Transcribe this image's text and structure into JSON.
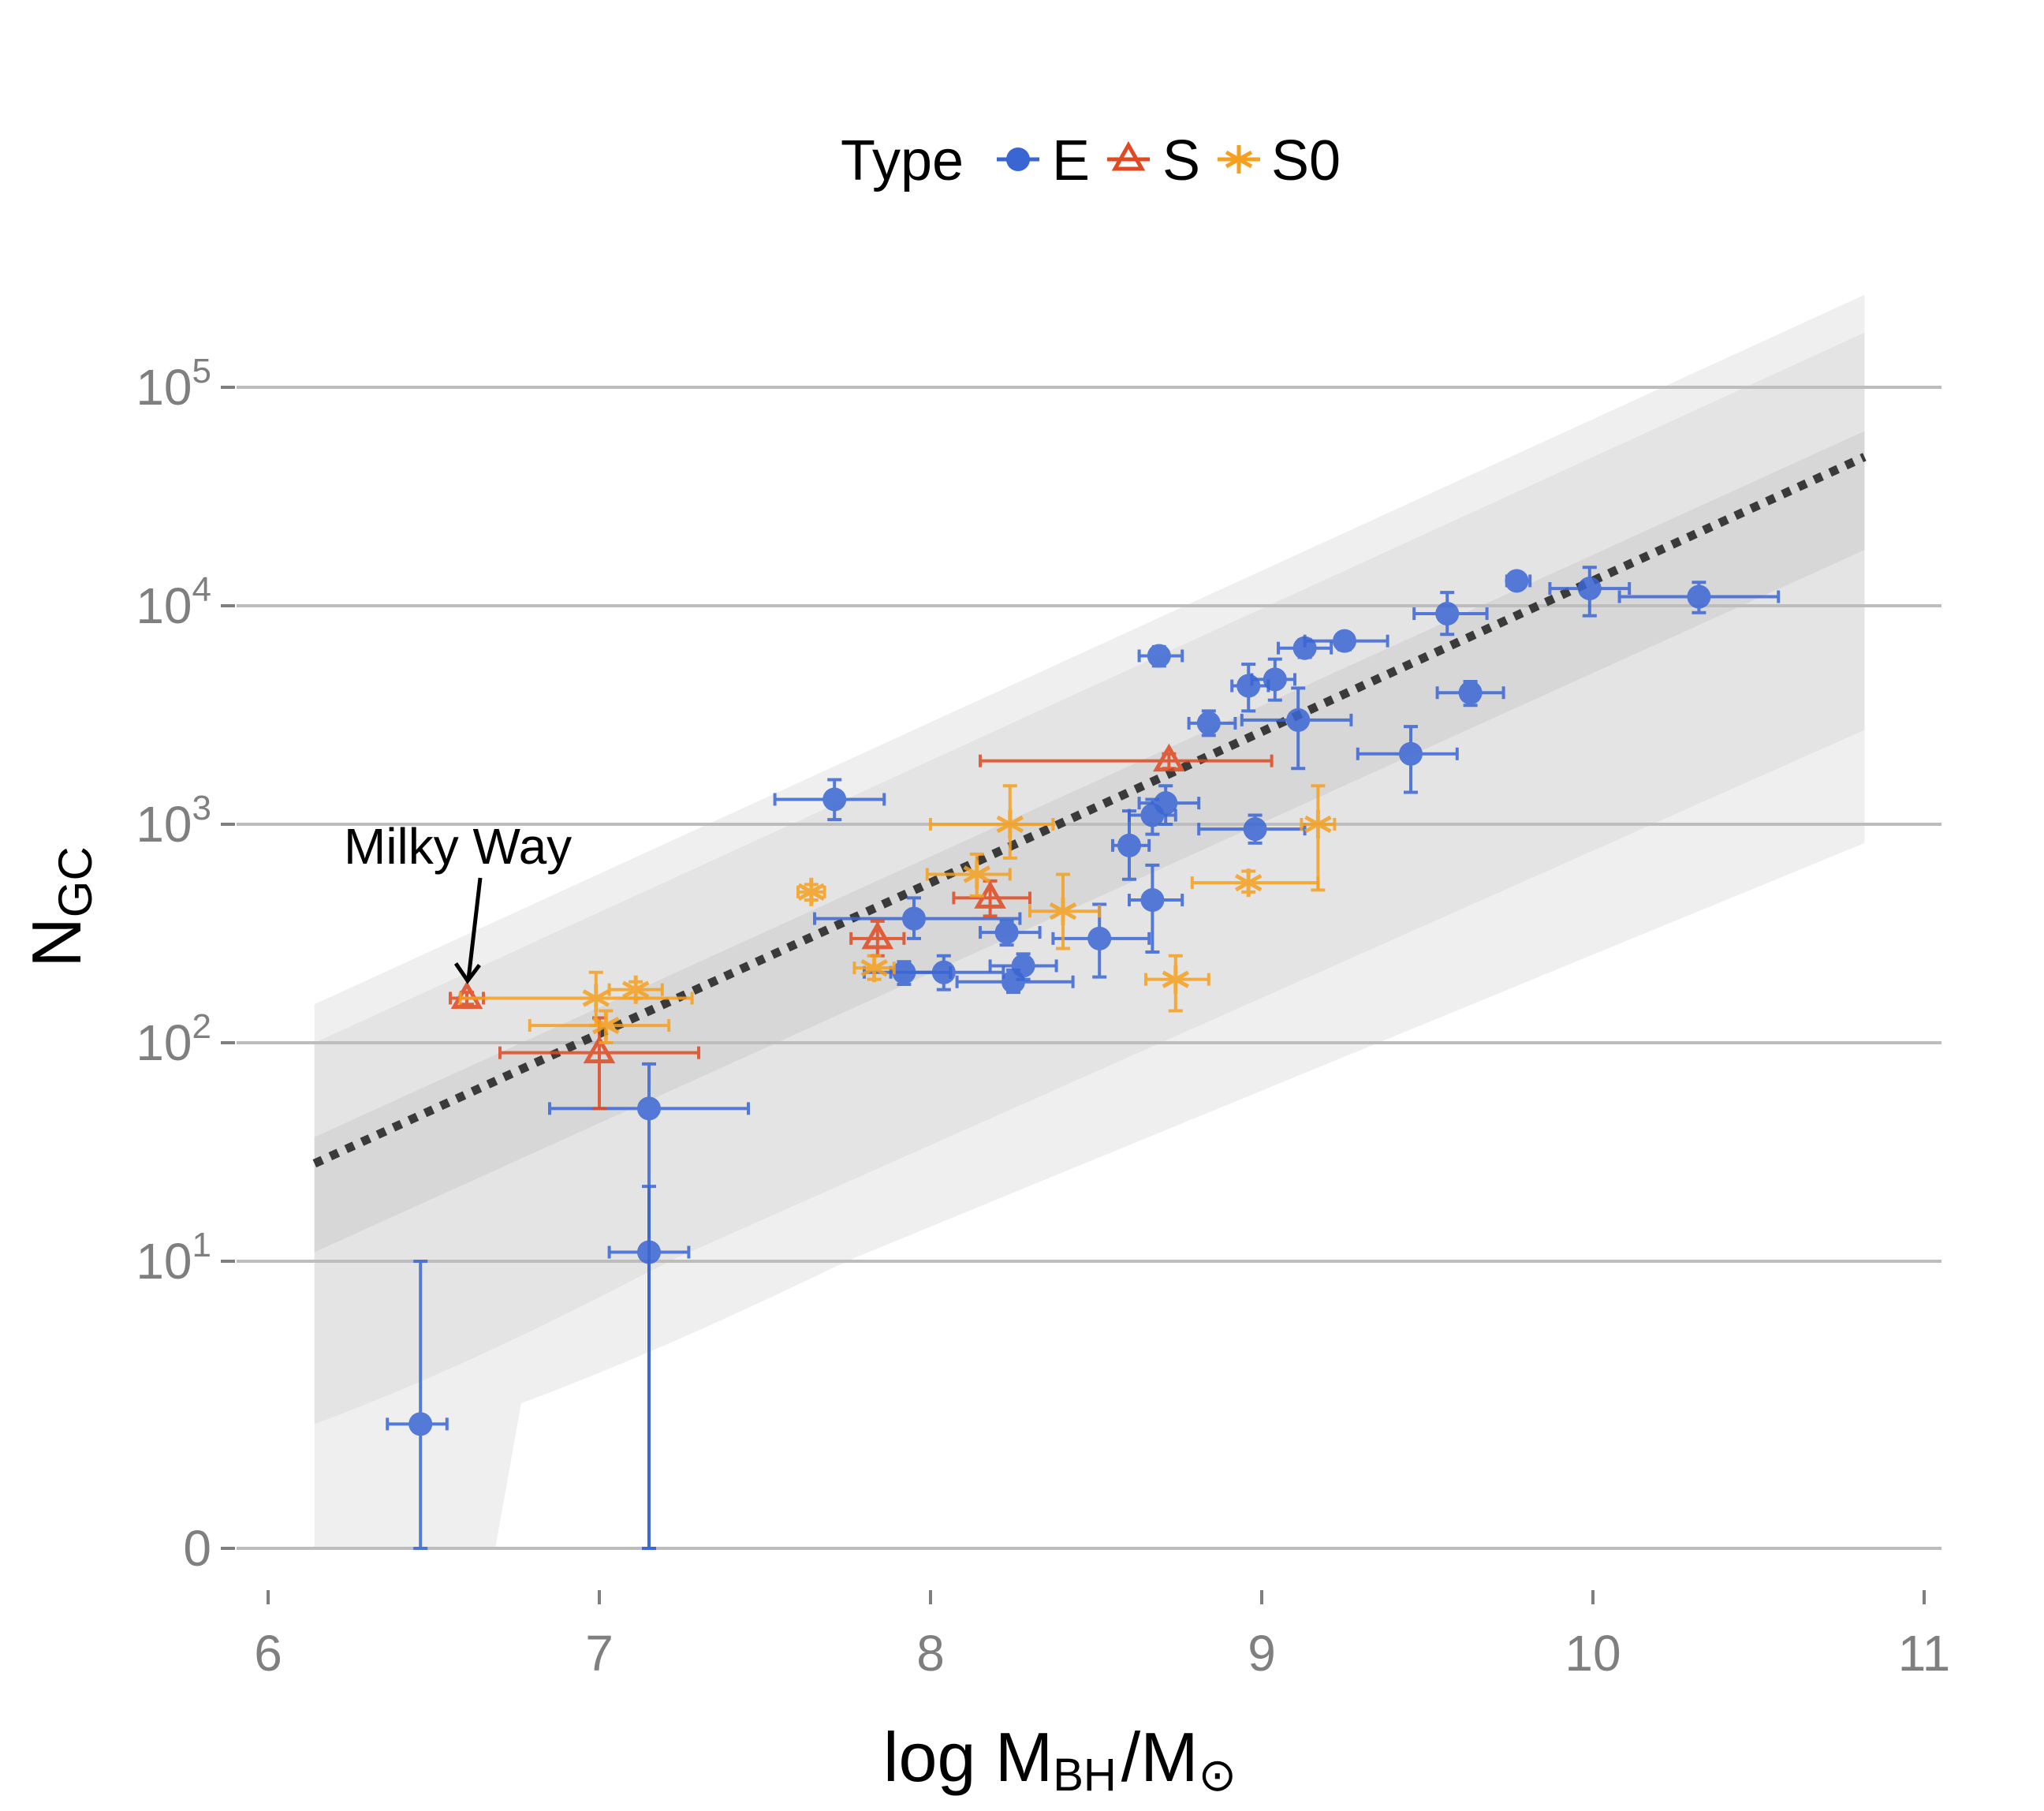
{
  "chart_data": {
    "type": "scatter",
    "title": "",
    "xlabel": {
      "prefix": "log M",
      "sub1": "BH",
      "slash": "/",
      "mid": "M",
      "sub2": "⊙"
    },
    "ylabel": {
      "main": "N",
      "sub": "GC"
    },
    "xlim": [
      6,
      11
    ],
    "x_ticks": [
      "6",
      "7",
      "8",
      "9",
      "10",
      "11"
    ],
    "y_ticks": [
      {
        "value": 0,
        "label": "0",
        "exp": ""
      },
      {
        "value": 10,
        "label": "10",
        "exp": "1"
      },
      {
        "value": 100,
        "label": "10",
        "exp": "2"
      },
      {
        "value": 1000,
        "label": "10",
        "exp": "3"
      },
      {
        "value": 10000,
        "label": "10",
        "exp": "4"
      },
      {
        "value": 100000,
        "label": "10",
        "exp": "5"
      }
    ],
    "y_scale": "asinh-log",
    "grid": "horizontal",
    "legend": {
      "title": "Type",
      "position": "top",
      "entries": [
        {
          "label": "E",
          "shape": "circle",
          "color": "#3a66d4"
        },
        {
          "label": "S",
          "shape": "triangle",
          "color": "#e04a22"
        },
        {
          "label": "S0",
          "shape": "asterisk",
          "color": "#f5a020"
        }
      ]
    },
    "fit_line": {
      "style": "dotted",
      "color": "#3a3a3a",
      "x": [
        6.14,
        10.82
      ],
      "y": [
        28,
        48000
      ]
    },
    "bands": [
      {
        "name": "outer",
        "color": "#efefef",
        "x0": 6.14,
        "x1": 10.82,
        "lower0": 0,
        "lower1": 820,
        "upper0": 150,
        "upper1": 265000
      },
      {
        "name": "middle",
        "color": "#e4e4e4",
        "x0": 6.14,
        "x1": 10.82,
        "lower0": 1.9,
        "lower1": 2700,
        "upper0": 100,
        "upper1": 178000
      },
      {
        "name": "inner",
        "color": "#d7d7d7",
        "x0": 6.14,
        "x1": 10.82,
        "lower0": 11,
        "lower1": 18000,
        "upper0": 37,
        "upper1": 63000
      }
    ],
    "annotation": {
      "text": "Milky Way",
      "x": 6.6,
      "y": 160
    },
    "series": [
      {
        "name": "E",
        "color": "#3a66d4",
        "points": [
          {
            "x": 6.46,
            "y": 1.9,
            "xerr": [
              6.36,
              6.54
            ],
            "yerr": [
              0,
              10
            ]
          },
          {
            "x": 7.15,
            "y": 50,
            "xerr": [
              6.85,
              7.45
            ],
            "yerr": [
              0,
              80
            ]
          },
          {
            "x": 7.15,
            "y": 11,
            "xerr": [
              7.03,
              7.27
            ],
            "yerr": [
              0,
              22
            ]
          },
          {
            "x": 7.71,
            "y": 1300,
            "xerr": [
              7.53,
              7.86
            ],
            "yerr": [
              1050,
              1600
            ]
          },
          {
            "x": 7.92,
            "y": 210,
            "xerr": [
              7.8,
              8.06
            ],
            "yerr": [
              185,
              235
            ]
          },
          {
            "x": 7.95,
            "y": 370,
            "xerr": [
              7.65,
              8.27
            ],
            "yerr": [
              300,
              460
            ]
          },
          {
            "x": 8.04,
            "y": 210,
            "xerr": [
              7.88,
              8.22
            ],
            "yerr": [
              175,
              250
            ]
          },
          {
            "x": 8.23,
            "y": 320,
            "xerr": [
              8.15,
              8.33
            ],
            "yerr": [
              280,
              360
            ]
          },
          {
            "x": 8.25,
            "y": 190,
            "xerr": [
              8.08,
              8.43
            ],
            "yerr": [
              170,
              215
            ]
          },
          {
            "x": 8.28,
            "y": 225,
            "xerr": [
              8.18,
              8.38
            ],
            "yerr": [
              195,
              255
            ]
          },
          {
            "x": 8.51,
            "y": 300,
            "xerr": [
              8.37,
              8.66
            ],
            "yerr": [
              200,
              430
            ]
          },
          {
            "x": 8.6,
            "y": 800,
            "xerr": [
              8.55,
              8.66
            ],
            "yerr": [
              560,
              1150
            ]
          },
          {
            "x": 8.67,
            "y": 450,
            "xerr": [
              8.6,
              8.76
            ],
            "yerr": [
              260,
              650
            ]
          },
          {
            "x": 8.67,
            "y": 1100,
            "xerr": [
              8.6,
              8.74
            ],
            "yerr": [
              900,
              1300
            ]
          },
          {
            "x": 8.69,
            "y": 5900,
            "xerr": [
              8.63,
              8.76
            ],
            "yerr": [
              5300,
              6500
            ]
          },
          {
            "x": 8.71,
            "y": 1250,
            "xerr": [
              8.63,
              8.81
            ],
            "yerr": [
              1000,
              1500
            ]
          },
          {
            "x": 8.84,
            "y": 2900,
            "xerr": [
              8.78,
              8.92
            ],
            "yerr": [
              2550,
              3300
            ]
          },
          {
            "x": 8.96,
            "y": 4300,
            "xerr": [
              8.91,
              9.02
            ],
            "yerr": [
              3300,
              5400
            ]
          },
          {
            "x": 8.98,
            "y": 950,
            "xerr": [
              8.81,
              9.13
            ],
            "yerr": [
              820,
              1100
            ]
          },
          {
            "x": 9.04,
            "y": 4600,
            "xerr": [
              8.97,
              9.1
            ],
            "yerr": [
              3700,
              5700
            ]
          },
          {
            "x": 9.11,
            "y": 3000,
            "xerr": [
              8.94,
              9.27
            ],
            "yerr": [
              1800,
              4200
            ]
          },
          {
            "x": 9.13,
            "y": 6400,
            "xerr": [
              9.05,
              9.21
            ],
            "yerr": [
              5800,
              7000
            ]
          },
          {
            "x": 9.25,
            "y": 6900,
            "xerr": [
              9.13,
              9.38
            ],
            "yerr": [
              6300,
              7500
            ]
          },
          {
            "x": 9.45,
            "y": 2100,
            "xerr": [
              9.29,
              9.59
            ],
            "yerr": [
              1400,
              2800
            ]
          },
          {
            "x": 9.56,
            "y": 9200,
            "xerr": [
              9.46,
              9.68
            ],
            "yerr": [
              7400,
              11500
            ]
          },
          {
            "x": 9.63,
            "y": 4000,
            "xerr": [
              9.53,
              9.73
            ],
            "yerr": [
              3500,
              4500
            ]
          },
          {
            "x": 9.77,
            "y": 13000,
            "xerr": [
              9.74,
              9.81
            ],
            "yerr": [
              12000,
              14000
            ]
          },
          {
            "x": 9.99,
            "y": 12000,
            "xerr": [
              9.87,
              10.11
            ],
            "yerr": [
              9000,
              15000
            ]
          },
          {
            "x": 10.32,
            "y": 11000,
            "xerr": [
              10.08,
              10.56
            ],
            "yerr": [
              9300,
              12800
            ]
          }
        ]
      },
      {
        "name": "S",
        "color": "#e04a22",
        "points": [
          {
            "x": 6.6,
            "y": 160,
            "xerr": [
              6.55,
              6.65
            ],
            "yerr": [
              150,
              170
            ]
          },
          {
            "x": 7.0,
            "y": 90,
            "xerr": [
              6.7,
              7.3
            ],
            "yerr": [
              50,
              130
            ]
          },
          {
            "x": 7.84,
            "y": 300,
            "xerr": [
              7.76,
              7.92
            ],
            "yerr": [
              250,
              360
            ]
          },
          {
            "x": 8.18,
            "y": 460,
            "xerr": [
              8.07,
              8.3
            ],
            "yerr": [
              380,
              550
            ]
          },
          {
            "x": 8.72,
            "y": 1950,
            "xerr": [
              8.15,
              9.03
            ],
            "yerr": [
              1800,
              2100
            ]
          }
        ]
      },
      {
        "name": "S0",
        "color": "#f5a020",
        "points": [
          {
            "x": 6.99,
            "y": 160,
            "xerr": [
              6.58,
              7.28
            ],
            "yerr": [
              120,
              210
            ]
          },
          {
            "x": 7.02,
            "y": 120,
            "xerr": [
              6.79,
              7.21
            ],
            "yerr": [
              100,
              140
            ]
          },
          {
            "x": 7.11,
            "y": 175,
            "xerr": [
              7.03,
              7.19
            ],
            "yerr": [
              160,
              190
            ]
          },
          {
            "x": 7.64,
            "y": 490,
            "xerr": [
              7.6,
              7.68
            ],
            "yerr": [
              450,
              530
            ]
          },
          {
            "x": 7.83,
            "y": 220,
            "xerr": [
              7.77,
              7.89
            ],
            "yerr": [
              195,
              250
            ]
          },
          {
            "x": 8.14,
            "y": 590,
            "xerr": [
              7.99,
              8.24
            ],
            "yerr": [
              470,
              730
            ]
          },
          {
            "x": 8.24,
            "y": 1000,
            "xerr": [
              8.0,
              8.37
            ],
            "yerr": [
              700,
              1500
            ]
          },
          {
            "x": 8.4,
            "y": 400,
            "xerr": [
              8.3,
              8.51
            ],
            "yerr": [
              270,
              590
            ]
          },
          {
            "x": 8.74,
            "y": 195,
            "xerr": [
              8.65,
              8.84
            ],
            "yerr": [
              140,
              250
            ]
          },
          {
            "x": 8.96,
            "y": 540,
            "xerr": [
              8.79,
              9.17
            ],
            "yerr": [
              490,
              610
            ]
          },
          {
            "x": 9.17,
            "y": 1000,
            "xerr": [
              9.12,
              9.22
            ],
            "yerr": [
              500,
              1500
            ]
          }
        ]
      }
    ]
  }
}
